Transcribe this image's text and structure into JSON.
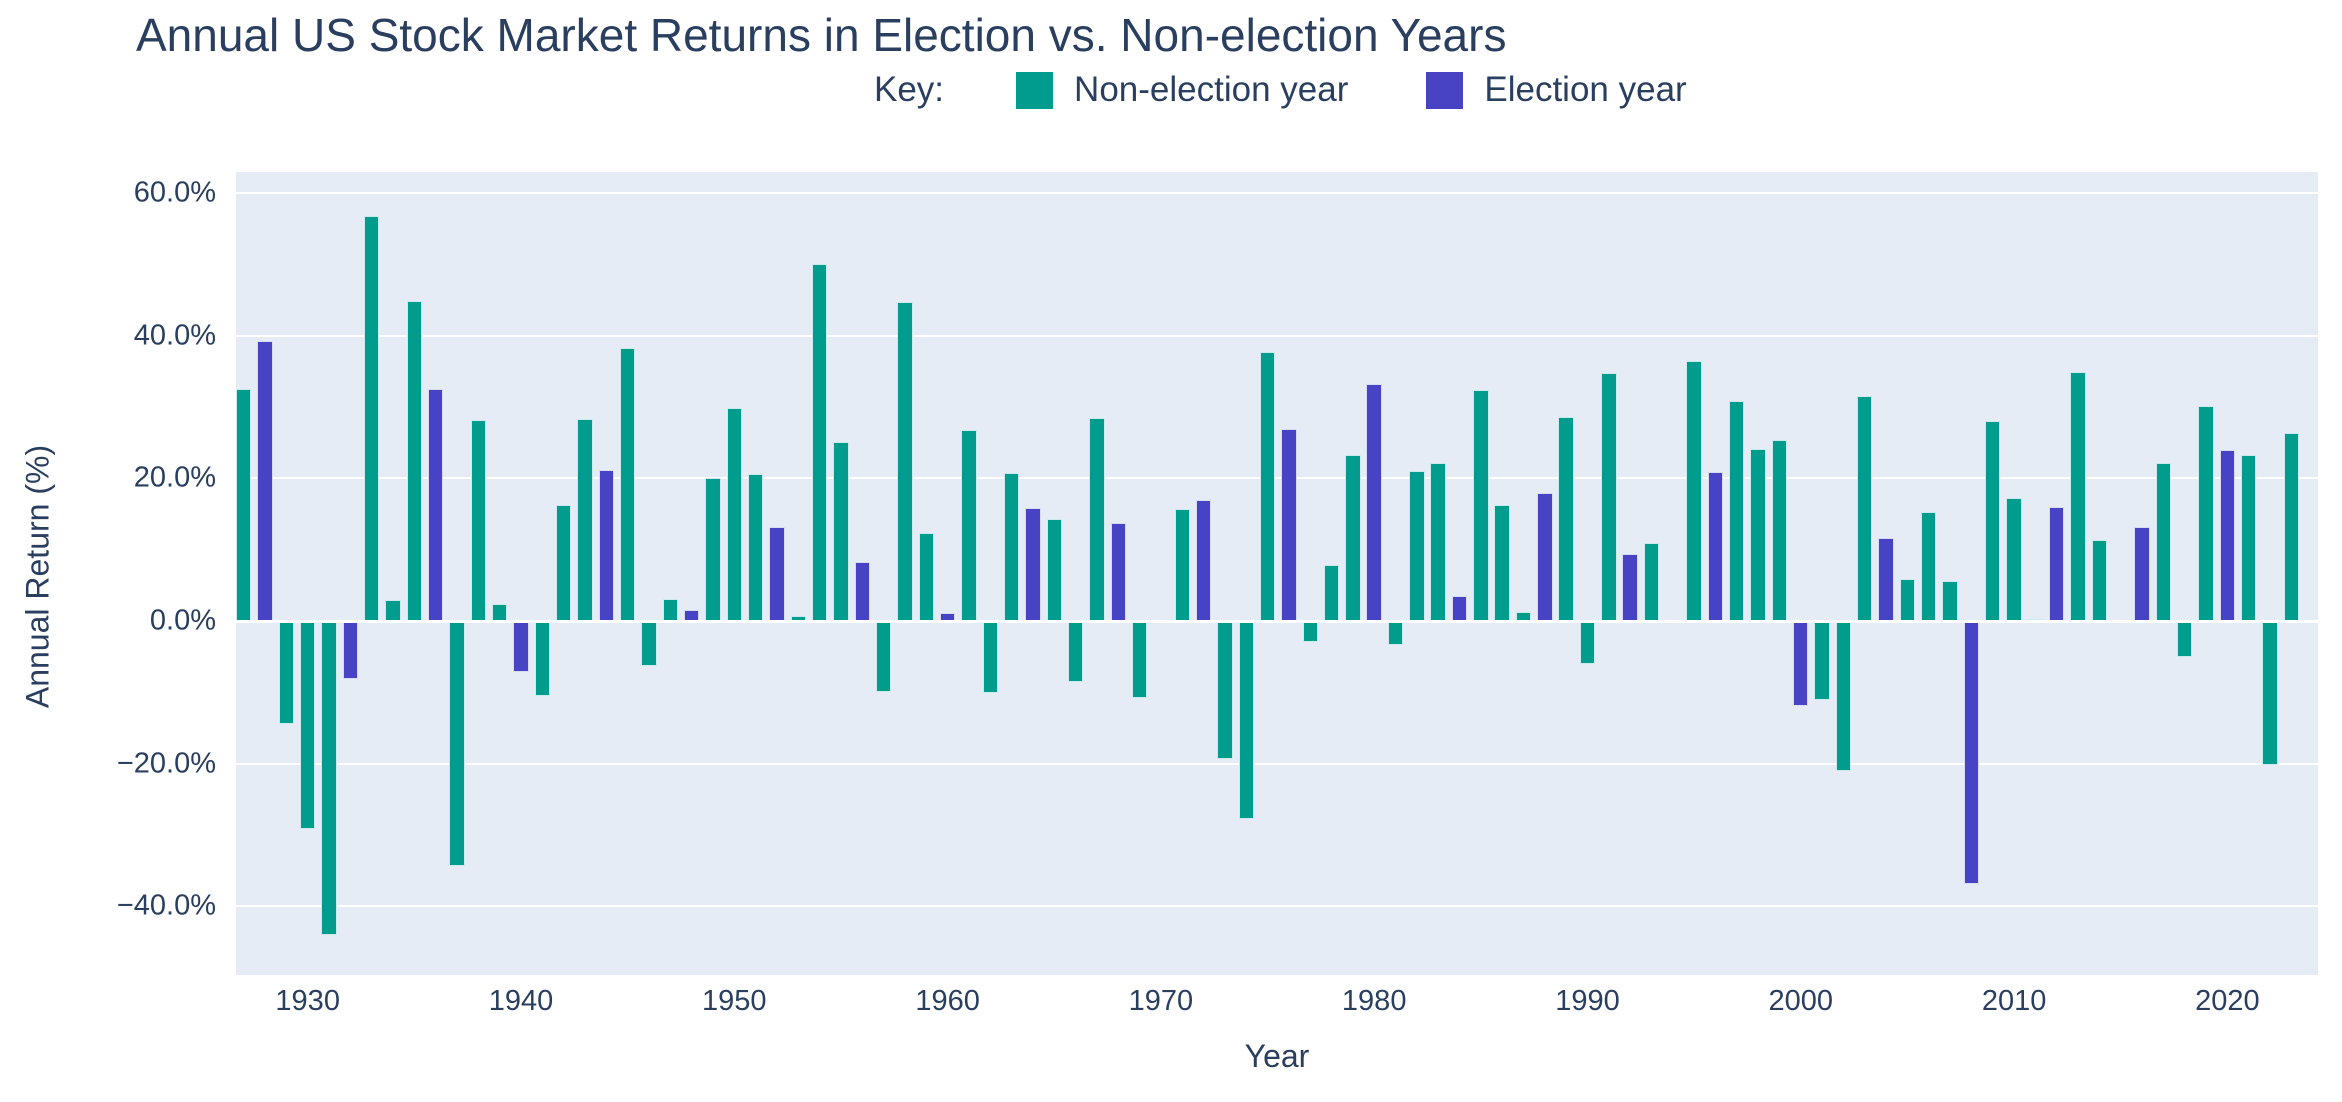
{
  "title": "Annual US Stock Market Returns in Election vs. Non-election Years",
  "legend": {
    "key_label": "Key:",
    "items": [
      {
        "label": "Non-election year",
        "color": "#009c8d"
      },
      {
        "label": "Election year",
        "color": "#4843c4"
      }
    ]
  },
  "colors": {
    "non_election_bar": "#009c8d",
    "election_bar": "#4843c4",
    "plot_background": "#e5ecf6",
    "gridline": "#ffffff",
    "text": "#2a3f5f",
    "page_background": "#ffffff"
  },
  "chart_data": {
    "type": "bar",
    "title": "Annual US Stock Market Returns in Election vs. Non-election Years",
    "xlabel": "Year",
    "ylabel": "Annual Return (%)",
    "legend_position": "top-center",
    "grid": true,
    "ylim": [
      -49.6,
      62.9
    ],
    "ytick_values": [
      60,
      40,
      20,
      0,
      -20,
      -40
    ],
    "ytick_labels": [
      "60.0%",
      "40.0%",
      "20.0%",
      "0.0%",
      "−20.0%",
      "−40.0%"
    ],
    "xtick_values": [
      1930,
      1940,
      1950,
      1960,
      1970,
      1980,
      1990,
      2000,
      2010,
      2020
    ],
    "xtick_labels": [
      "1930",
      "1940",
      "1950",
      "1960",
      "1970",
      "1980",
      "1990",
      "2000",
      "2010",
      "2020"
    ],
    "series": [
      {
        "name": "Non-election year",
        "color": "#009c8d"
      },
      {
        "name": "Election year",
        "color": "#4843c4"
      }
    ],
    "years": [
      1927,
      1928,
      1929,
      1930,
      1931,
      1932,
      1933,
      1934,
      1935,
      1936,
      1937,
      1938,
      1939,
      1940,
      1941,
      1942,
      1943,
      1944,
      1945,
      1946,
      1947,
      1948,
      1949,
      1950,
      1951,
      1952,
      1953,
      1954,
      1955,
      1956,
      1957,
      1958,
      1959,
      1960,
      1961,
      1962,
      1963,
      1964,
      1965,
      1966,
      1967,
      1968,
      1969,
      1970,
      1971,
      1972,
      1973,
      1974,
      1975,
      1976,
      1977,
      1978,
      1979,
      1980,
      1981,
      1982,
      1983,
      1984,
      1985,
      1986,
      1987,
      1988,
      1989,
      1990,
      1991,
      1992,
      1993,
      1994,
      1995,
      1996,
      1997,
      1998,
      1999,
      2000,
      2001,
      2002,
      2003,
      2004,
      2005,
      2006,
      2007,
      2008,
      2009,
      2010,
      2011,
      2012,
      2013,
      2014,
      2015,
      2016,
      2017,
      2018,
      2019,
      2020,
      2021,
      2022,
      2023
    ],
    "values": [
      32.5,
      39.2,
      -14.4,
      -29.1,
      -44.0,
      -8.1,
      56.8,
      3.0,
      44.8,
      32.5,
      -34.4,
      28.2,
      2.4,
      -7.2,
      -10.5,
      16.2,
      28.3,
      21.2,
      38.3,
      -6.3,
      3.1,
      1.6,
      20.0,
      29.9,
      20.6,
      13.2,
      0.7,
      50.1,
      25.1,
      8.2,
      -10.0,
      44.7,
      12.4,
      1.1,
      26.8,
      -10.1,
      20.8,
      15.9,
      14.3,
      -8.6,
      28.5,
      13.8,
      -10.8,
      0.2,
      15.7,
      16.9,
      -19.3,
      -27.7,
      37.7,
      26.9,
      -3.0,
      7.8,
      23.2,
      33.2,
      -3.4,
      21.0,
      22.2,
      3.5,
      32.4,
      16.2,
      1.3,
      17.9,
      28.6,
      -6.0,
      34.7,
      9.4,
      10.9,
      -0.2,
      36.5,
      20.9,
      30.8,
      24.1,
      25.4,
      -11.9,
      -11.1,
      -21.0,
      31.5,
      11.7,
      5.9,
      15.3,
      5.6,
      -36.8,
      28.1,
      17.3,
      0.3,
      16.0,
      34.9,
      11.4,
      -0.3,
      13.2,
      22.2,
      -5.1,
      30.1,
      23.9,
      23.3,
      -20.2,
      26.3
    ],
    "is_election_year": [
      false,
      true,
      false,
      false,
      false,
      true,
      false,
      false,
      false,
      true,
      false,
      false,
      false,
      true,
      false,
      false,
      false,
      true,
      false,
      false,
      false,
      true,
      false,
      false,
      false,
      true,
      false,
      false,
      false,
      true,
      false,
      false,
      false,
      true,
      false,
      false,
      false,
      true,
      false,
      false,
      false,
      true,
      false,
      false,
      false,
      true,
      false,
      false,
      false,
      true,
      false,
      false,
      false,
      true,
      false,
      false,
      false,
      true,
      false,
      false,
      false,
      true,
      false,
      false,
      false,
      true,
      false,
      false,
      false,
      true,
      false,
      false,
      false,
      true,
      false,
      false,
      false,
      true,
      false,
      false,
      false,
      true,
      false,
      false,
      false,
      true,
      false,
      false,
      false,
      true,
      false,
      false,
      false,
      true,
      false,
      false,
      false
    ]
  }
}
